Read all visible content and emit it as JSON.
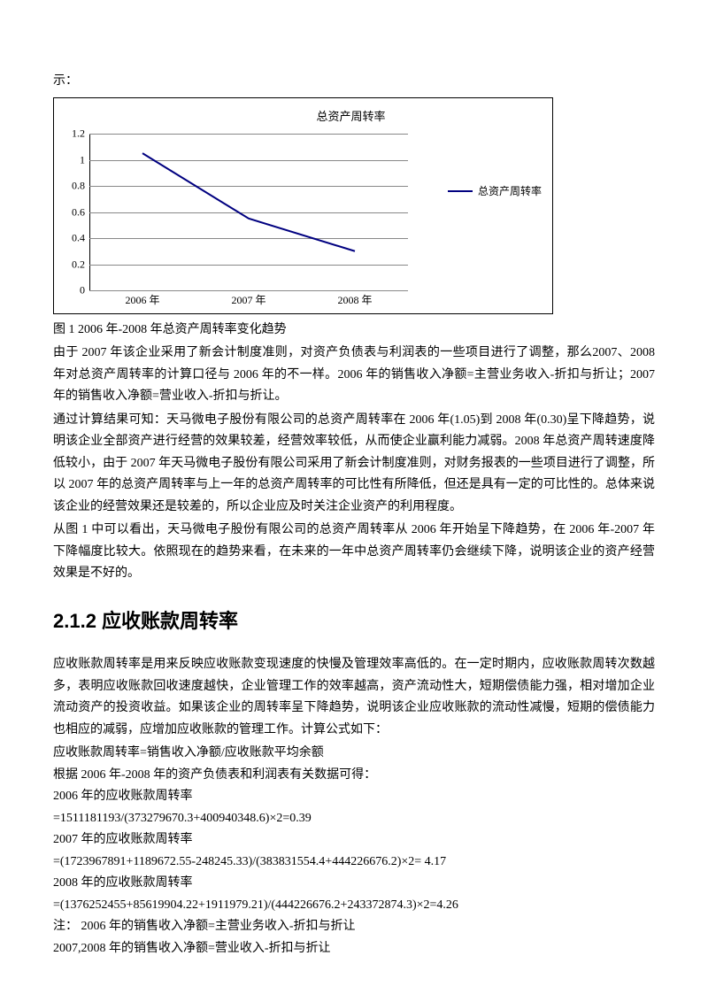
{
  "intro_frag": "示：",
  "chart": {
    "type": "line",
    "title": "总资产周转率",
    "categories": [
      "2006 年",
      "2007 年",
      "2008 年"
    ],
    "values": [
      1.05,
      0.55,
      0.3
    ],
    "series_name": "总资产周转率",
    "line_color": "#000080",
    "ylim": [
      0,
      1.2
    ],
    "ytick_step": 0.2,
    "yticks_labels": [
      "0",
      "0.2",
      "0.4",
      "0.6",
      "0.8",
      "1",
      "1.2"
    ],
    "grid_color": "#888888",
    "background_color": "#ffffff",
    "font_size": 12
  },
  "caption": "图 1   2006 年-2008 年总资产周转率变化趋势",
  "p1": "由于 2007 年该企业采用了新会计制度准则，对资产负债表与利润表的一些项目进行了调整，那么2007、2008 年对总资产周转率的计算口径与 2006 年的不一样。2006 年的销售收入净额=主营业务收入-折扣与折让；2007 年的销售收入净额=营业收入-折扣与折让。",
  "p2": "通过计算结果可知：天马微电子股份有限公司的总资产周转率在 2006 年(1.05)到 2008 年(0.30)呈下降趋势，说明该企业全部资产进行经营的效果较差，经营效率较低，从而使企业赢利能力减弱。2008 年总资产周转速度降低较小，由于 2007 年天马微电子股份有限公司采用了新会计制度准则，对财务报表的一些项目进行了调整，所以 2007 年的总资产周转率与上一年的总资产周转率的可比性有所降低，但还是具有一定的可比性的。总体来说该企业的经营效果还是较差的，所以企业应及时关注企业资产的利用程度。",
  "p3": "从图 1 中可以看出，天马微电子股份有限公司的总资产周转率从 2006 年开始呈下降趋势，在 2006 年-2007 年下降幅度比较大。依照现在的趋势来看，在未来的一年中总资产周转率仍会继续下降，说明该企业的资产经营效果是不好的。",
  "h2": "2.1.2 应收账款周转率",
  "p4": "应收账款周转率是用来反映应收账款变现速度的快慢及管理效率高低的。在一定时期内，应收账款周转次数越多，表明应收账款回收速度越快，企业管理工作的效率越高，资产流动性大，短期偿债能力强，相对增加企业流动资产的投资收益。如果该企业的周转率呈下降趋势，说明该企业应收账款的流动性减慢，短期的偿债能力也相应的减弱，应增加应收账款的管理工作。计算公式如下：",
  "f1": "应收账款周转率=销售收入净额/应收账款平均余额",
  "f2": "根据 2006 年-2008 年的资产负债表和利润表有关数据可得：",
  "c1a": "2006 年的应收账款周转率",
  "c1b": "=1511181193/(373279670.3+400940348.6)×2=0.39",
  "c2a": "2007 年的应收账款周转率",
  "c2b": "=(1723967891+1189672.55-248245.33)/(383831554.4+444226676.2)×2= 4.17",
  "c3a": "2008 年的应收账款周转率",
  "c3b": "=(1376252455+85619904.22+1911979.21)/(444226676.2+243372874.3)×2=4.26",
  "note1": "注：  2006 年的销售收入净额=主营业务收入-折扣与折让",
  "note2": "2007,2008 年的销售收入净额=营业收入-折扣与折让"
}
